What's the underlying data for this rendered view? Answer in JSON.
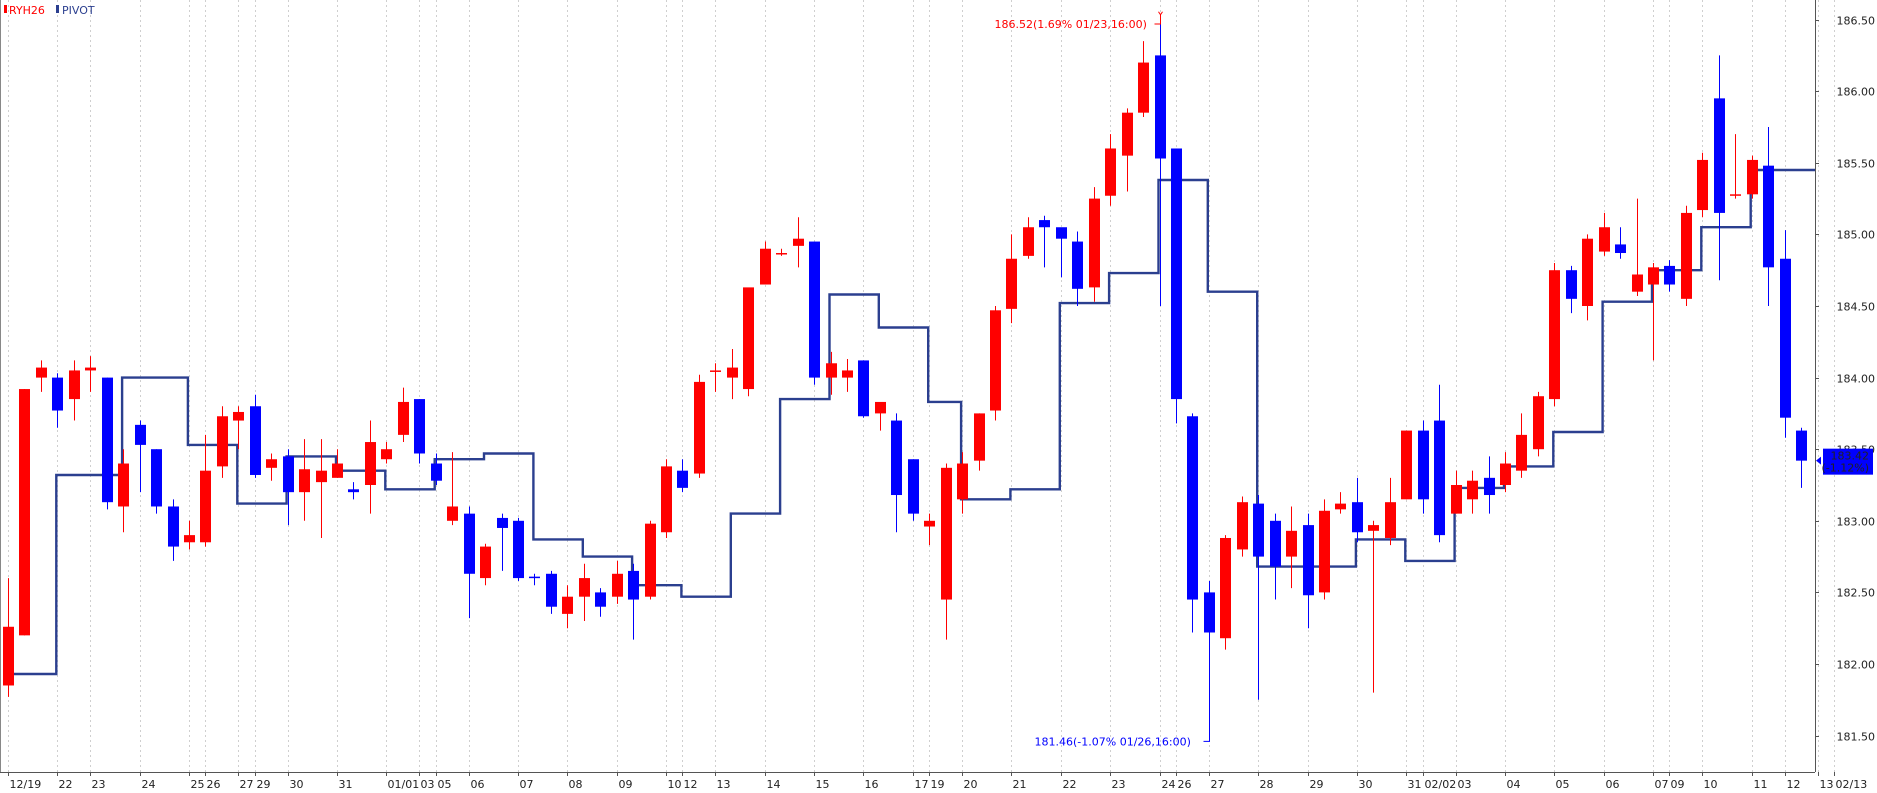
{
  "legend": [
    {
      "label": "RYH26",
      "color": "#ff0000"
    },
    {
      "label": "PIVOT",
      "color": "#2b3f8f"
    }
  ],
  "annotations": {
    "high": {
      "text": "186.52(1.69% 01/23,16:00)",
      "color": "#ff0000"
    },
    "low": {
      "text": "181.46(-1.07% 01/26,16:00)",
      "color": "#0000ff"
    }
  },
  "last_price": {
    "price": "183.42",
    "change": "(-1.12%)",
    "value": 183.42
  },
  "chart_data": {
    "type": "candlestick",
    "y_axis": {
      "ticks": [
        "181.50",
        "182.00",
        "182.50",
        "183.00",
        "183.50",
        "184.00",
        "184.50",
        "185.00",
        "185.50",
        "186.00",
        "186.50"
      ],
      "min": 181.4,
      "max": 186.62
    },
    "x_labels": [
      "12/19",
      "22",
      "23",
      "24",
      "25",
      "26",
      "27",
      "29",
      "30",
      "31",
      "01/01",
      "03",
      "05",
      "06",
      "07",
      "08",
      "09",
      "10",
      "12",
      "13",
      "14",
      "15",
      "16",
      "17",
      "19",
      "20",
      "21",
      "22",
      "23",
      "24",
      "26",
      "27",
      "28",
      "29",
      "30",
      "31",
      "02/02",
      "03",
      "04",
      "05",
      "06",
      "07",
      "09",
      "10",
      "11",
      "12",
      "13",
      "02/13"
    ],
    "x_label_slots": [
      0,
      3,
      5,
      8,
      11,
      12,
      14,
      15,
      17,
      20,
      23,
      25,
      26,
      28,
      31,
      34,
      37,
      40,
      41,
      43,
      46,
      49,
      52,
      55,
      56,
      58,
      61,
      64,
      67,
      70,
      71,
      73,
      76,
      79,
      82,
      85,
      86,
      88,
      91,
      94,
      97,
      100,
      101,
      103,
      106,
      108,
      110,
      111
    ],
    "colors": {
      "up": "#ff0000",
      "down": "#0000ff",
      "pivot": "#2b3f8f"
    },
    "candles": [
      [
        181.85,
        182.26,
        182.6,
        181.77
      ],
      [
        182.2,
        183.92,
        183.92,
        182.2
      ],
      [
        184.0,
        184.07,
        184.12,
        183.9
      ],
      [
        184.0,
        183.77,
        184.03,
        183.65
      ],
      [
        183.85,
        184.05,
        184.12,
        183.7
      ],
      [
        184.05,
        184.07,
        184.15,
        183.9
      ],
      [
        184.0,
        183.13,
        184.0,
        183.08
      ],
      [
        183.1,
        183.4,
        183.5,
        182.92
      ],
      [
        183.67,
        183.53,
        183.7,
        183.2
      ],
      [
        183.5,
        183.1,
        183.5,
        183.05
      ],
      [
        183.1,
        182.82,
        183.15,
        182.72
      ],
      [
        182.85,
        182.9,
        183.0,
        182.8
      ],
      [
        182.85,
        183.35,
        183.6,
        182.82
      ],
      [
        183.38,
        183.73,
        183.8,
        183.3
      ],
      [
        183.7,
        183.76,
        183.8,
        183.5
      ],
      [
        183.8,
        183.32,
        183.88,
        183.3
      ],
      [
        183.37,
        183.43,
        183.47,
        183.28
      ],
      [
        183.45,
        183.2,
        183.5,
        182.97
      ],
      [
        183.2,
        183.36,
        183.57,
        183.0
      ],
      [
        183.27,
        183.35,
        183.57,
        182.88
      ],
      [
        183.3,
        183.4,
        183.5,
        183.3
      ],
      [
        183.22,
        183.2,
        183.27,
        183.15
      ],
      [
        183.25,
        183.55,
        183.7,
        183.05
      ],
      [
        183.43,
        183.5,
        183.55,
        183.4
      ],
      [
        183.6,
        183.83,
        183.93,
        183.55
      ],
      [
        183.85,
        183.47,
        183.85,
        183.4
      ],
      [
        183.4,
        183.28,
        183.47,
        183.25
      ],
      [
        183.0,
        183.1,
        183.48,
        182.97
      ],
      [
        183.05,
        182.63,
        183.1,
        182.32
      ],
      [
        182.6,
        182.82,
        182.84,
        182.55
      ],
      [
        183.02,
        182.95,
        183.05,
        182.65
      ],
      [
        183.0,
        182.6,
        183.02,
        182.58
      ],
      [
        182.61,
        182.6,
        182.63,
        182.55
      ],
      [
        182.63,
        182.4,
        182.65,
        182.35
      ],
      [
        182.35,
        182.47,
        182.55,
        182.25
      ],
      [
        182.47,
        182.6,
        182.7,
        182.3
      ],
      [
        182.5,
        182.4,
        182.53,
        182.33
      ],
      [
        182.47,
        182.63,
        182.72,
        182.42
      ],
      [
        182.65,
        182.45,
        182.7,
        182.17
      ],
      [
        182.47,
        182.98,
        183.0,
        182.45
      ],
      [
        182.92,
        183.38,
        183.43,
        182.88
      ],
      [
        183.35,
        183.23,
        183.43,
        183.2
      ],
      [
        183.33,
        183.97,
        184.02,
        183.3
      ],
      [
        184.05,
        184.05,
        184.1,
        183.9
      ],
      [
        184.0,
        184.07,
        184.2,
        183.85
      ],
      [
        183.92,
        184.63,
        184.6,
        183.87
      ],
      [
        184.65,
        184.9,
        184.95,
        184.65
      ],
      [
        184.87,
        184.87,
        184.9,
        184.85
      ],
      [
        184.92,
        184.97,
        185.12,
        184.77
      ],
      [
        184.95,
        184.0,
        184.95,
        183.95
      ],
      [
        184.0,
        184.1,
        184.18,
        183.88
      ],
      [
        184.0,
        184.05,
        184.13,
        183.9
      ],
      [
        184.12,
        183.73,
        184.12,
        183.72
      ],
      [
        183.75,
        183.83,
        183.82,
        183.63
      ],
      [
        183.7,
        183.18,
        183.75,
        182.92
      ],
      [
        183.43,
        183.05,
        183.43,
        183.0
      ],
      [
        182.96,
        183.0,
        183.05,
        182.83
      ],
      [
        182.45,
        183.37,
        183.4,
        182.17
      ],
      [
        183.15,
        183.4,
        183.48,
        183.05
      ],
      [
        183.42,
        183.75,
        183.75,
        183.35
      ],
      [
        183.77,
        184.47,
        184.5,
        183.7
      ],
      [
        184.48,
        184.83,
        185.0,
        184.38
      ],
      [
        184.85,
        185.05,
        185.12,
        184.83
      ],
      [
        185.1,
        185.05,
        185.13,
        184.77
      ],
      [
        185.05,
        184.97,
        185.0,
        184.7
      ],
      [
        184.95,
        184.62,
        185.02,
        184.5
      ],
      [
        184.63,
        185.25,
        185.33,
        184.53
      ],
      [
        185.27,
        185.6,
        185.7,
        185.2
      ],
      [
        185.55,
        185.85,
        185.88,
        185.3
      ],
      [
        185.85,
        186.2,
        186.35,
        185.82
      ],
      [
        186.25,
        185.53,
        186.52,
        184.5
      ],
      [
        185.6,
        183.85,
        185.6,
        183.68
      ],
      [
        183.73,
        182.45,
        183.75,
        182.22
      ],
      [
        182.5,
        182.22,
        182.58,
        181.46
      ],
      [
        182.18,
        182.88,
        182.9,
        182.1
      ],
      [
        182.8,
        183.13,
        183.17,
        182.75
      ],
      [
        183.12,
        182.75,
        183.18,
        181.75
      ],
      [
        183.0,
        182.68,
        183.05,
        182.45
      ],
      [
        182.75,
        182.93,
        183.1,
        182.53
      ],
      [
        182.97,
        182.48,
        183.05,
        182.25
      ],
      [
        182.5,
        183.07,
        183.15,
        182.45
      ],
      [
        183.08,
        183.12,
        183.2,
        183.05
      ],
      [
        183.13,
        182.92,
        183.3,
        182.85
      ],
      [
        182.93,
        182.97,
        183.0,
        181.8
      ],
      [
        182.88,
        183.13,
        183.3,
        182.83
      ],
      [
        183.15,
        183.63,
        183.63,
        183.15
      ],
      [
        183.63,
        183.15,
        183.7,
        183.05
      ],
      [
        183.7,
        182.9,
        183.95,
        182.85
      ],
      [
        183.05,
        183.25,
        183.35,
        183.05
      ],
      [
        183.15,
        183.28,
        183.35,
        183.05
      ],
      [
        183.3,
        183.18,
        183.45,
        183.05
      ],
      [
        183.25,
        183.4,
        183.48,
        183.2
      ],
      [
        183.35,
        183.6,
        183.75,
        183.3
      ],
      [
        183.5,
        183.87,
        183.9,
        183.45
      ],
      [
        183.85,
        184.75,
        184.8,
        183.8
      ],
      [
        184.75,
        184.55,
        184.78,
        184.45
      ],
      [
        184.5,
        184.97,
        185.0,
        184.4
      ],
      [
        184.88,
        185.05,
        185.15,
        184.85
      ],
      [
        184.93,
        184.87,
        185.05,
        184.83
      ],
      [
        184.6,
        184.72,
        185.25,
        184.57
      ],
      [
        184.65,
        184.77,
        184.8,
        184.12
      ],
      [
        184.78,
        184.65,
        184.82,
        184.6
      ],
      [
        184.55,
        185.15,
        185.2,
        184.5
      ],
      [
        185.17,
        185.52,
        185.57,
        185.12
      ],
      [
        185.95,
        185.15,
        186.25,
        184.68
      ],
      [
        185.27,
        185.28,
        185.7,
        185.25
      ],
      [
        185.28,
        185.52,
        185.55,
        185.25
      ],
      [
        185.48,
        184.77,
        185.75,
        184.5
      ],
      [
        184.83,
        183.72,
        185.03,
        183.58
      ],
      [
        183.63,
        183.42,
        183.65,
        183.23
      ]
    ],
    "pivot_levels": [
      {
        "from": 0,
        "to": 3,
        "value": 181.93
      },
      {
        "from": 3,
        "to": 7,
        "value": 183.32
      },
      {
        "from": 7,
        "to": 11,
        "value": 184.0
      },
      {
        "from": 11,
        "to": 14,
        "value": 183.53
      },
      {
        "from": 14,
        "to": 17,
        "value": 183.12
      },
      {
        "from": 17,
        "to": 20,
        "value": 183.45
      },
      {
        "from": 20,
        "to": 23,
        "value": 183.35
      },
      {
        "from": 23,
        "to": 26,
        "value": 183.22
      },
      {
        "from": 26,
        "to": 29,
        "value": 183.43
      },
      {
        "from": 29,
        "to": 32,
        "value": 183.47
      },
      {
        "from": 32,
        "to": 35,
        "value": 182.87
      },
      {
        "from": 35,
        "to": 38,
        "value": 182.75
      },
      {
        "from": 38,
        "to": 41,
        "value": 182.55
      },
      {
        "from": 41,
        "to": 44,
        "value": 182.47
      },
      {
        "from": 44,
        "to": 47,
        "value": 183.05
      },
      {
        "from": 47,
        "to": 50,
        "value": 183.85
      },
      {
        "from": 50,
        "to": 53,
        "value": 184.58
      },
      {
        "from": 53,
        "to": 56,
        "value": 184.35
      },
      {
        "from": 56,
        "to": 58,
        "value": 183.83
      },
      {
        "from": 58,
        "to": 61,
        "value": 183.15
      },
      {
        "from": 61,
        "to": 64,
        "value": 183.22
      },
      {
        "from": 64,
        "to": 67,
        "value": 184.52
      },
      {
        "from": 67,
        "to": 70,
        "value": 184.73
      },
      {
        "from": 70,
        "to": 73,
        "value": 185.38
      },
      {
        "from": 73,
        "to": 76,
        "value": 184.6
      },
      {
        "from": 76,
        "to": 79,
        "value": 182.68
      },
      {
        "from": 79,
        "to": 82,
        "value": 182.68
      },
      {
        "from": 82,
        "to": 85,
        "value": 182.87
      },
      {
        "from": 85,
        "to": 88,
        "value": 182.72
      },
      {
        "from": 88,
        "to": 91,
        "value": 183.23
      },
      {
        "from": 91,
        "to": 94,
        "value": 183.38
      },
      {
        "from": 94,
        "to": 97,
        "value": 183.62
      },
      {
        "from": 97,
        "to": 100,
        "value": 184.53
      },
      {
        "from": 100,
        "to": 103,
        "value": 184.75
      },
      {
        "from": 103,
        "to": 106,
        "value": 185.05
      },
      {
        "from": 106,
        "to": 121,
        "value": 185.45
      }
    ]
  }
}
